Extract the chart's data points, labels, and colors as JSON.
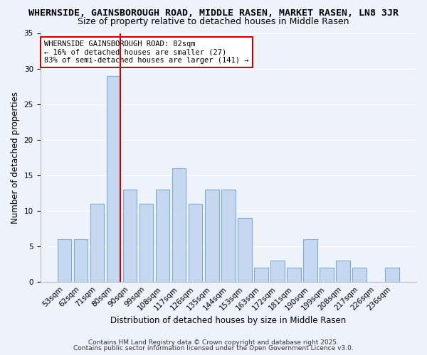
{
  "title": "WHERNSIDE, GAINSBOROUGH ROAD, MIDDLE RASEN, MARKET RASEN, LN8 3JR",
  "subtitle": "Size of property relative to detached houses in Middle Rasen",
  "xlabel": "Distribution of detached houses by size in Middle Rasen",
  "ylabel": "Number of detached properties",
  "categories": [
    "53sqm",
    "62sqm",
    "71sqm",
    "80sqm",
    "90sqm",
    "99sqm",
    "108sqm",
    "117sqm",
    "126sqm",
    "135sqm",
    "144sqm",
    "153sqm",
    "163sqm",
    "172sqm",
    "181sqm",
    "190sqm",
    "199sqm",
    "208sqm",
    "217sqm",
    "226sqm",
    "236sqm"
  ],
  "values": [
    6,
    6,
    11,
    29,
    13,
    11,
    13,
    16,
    11,
    13,
    13,
    9,
    2,
    3,
    2,
    6,
    2,
    3,
    2,
    0,
    2
  ],
  "bar_color": "#c5d8f0",
  "bar_edge_color": "#7aadd4",
  "highlight_index": 3,
  "highlight_line_color": "#cc0000",
  "ylim": [
    0,
    35
  ],
  "yticks": [
    0,
    5,
    10,
    15,
    20,
    25,
    30,
    35
  ],
  "annotation_text": "WHERNSIDE GAINSBOROUGH ROAD: 82sqm\n← 16% of detached houses are smaller (27)\n83% of semi-detached houses are larger (141) →",
  "annotation_box_color": "#ffffff",
  "annotation_box_edge_color": "#cc0000",
  "background_color": "#eef2fb",
  "footer_line1": "Contains HM Land Registry data © Crown copyright and database right 2025.",
  "footer_line2": "Contains public sector information licensed under the Open Government Licence v3.0.",
  "title_fontsize": 9.5,
  "subtitle_fontsize": 9,
  "axis_label_fontsize": 8.5,
  "tick_fontsize": 7.5,
  "footer_fontsize": 6.5
}
